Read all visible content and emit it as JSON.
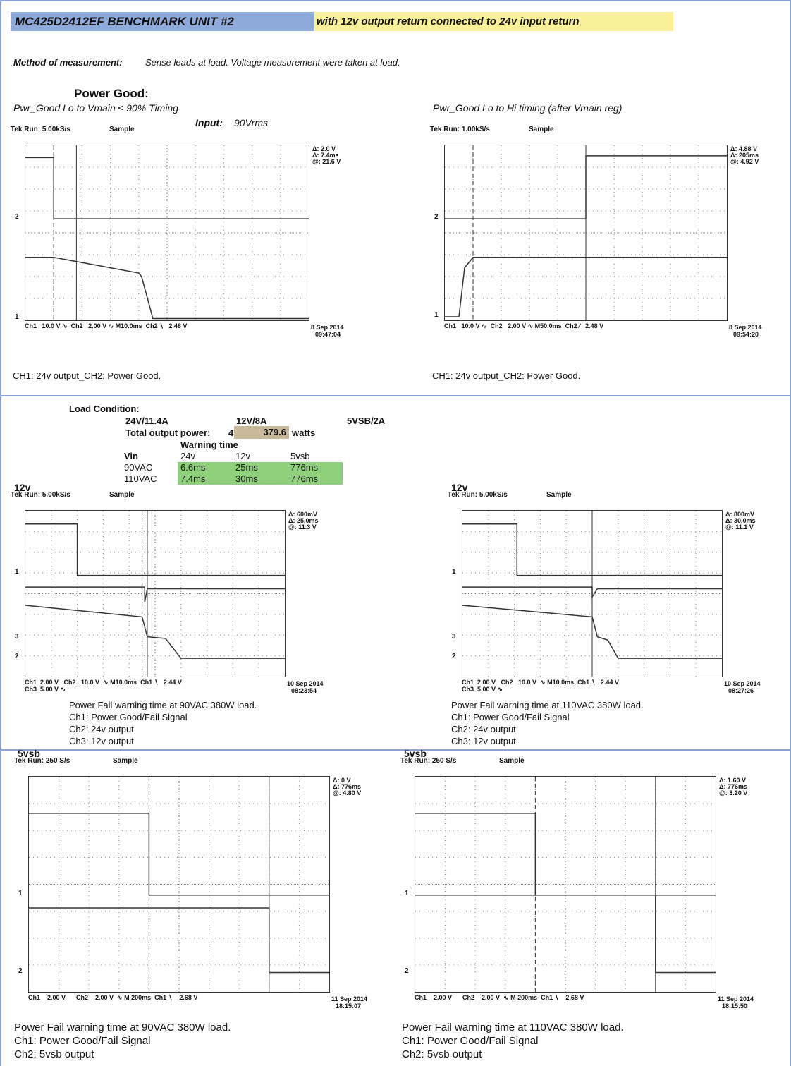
{
  "header": {
    "title": "MC425D2412EF BENCHMARK UNIT #2",
    "note": "with 12v output return connected to 24v input return",
    "method_label": "Method of measurement:",
    "method_text": "Sense leads at load. Voltage measurement were taken at load."
  },
  "power_good": {
    "heading": "Power Good:",
    "input_label": "Input:",
    "input_value": "90Vrms",
    "scopes": [
      {
        "title": "Pwr_Good Lo to Vmain ≤ 90% Timing",
        "run": "Tek Run: 5.00kS/s",
        "mode": "Sample",
        "readout": [
          "Δ: 2.0 V",
          "Δ: 7.4ms",
          "@: 21.6 V"
        ],
        "markers": [
          "2",
          "1"
        ],
        "bottom": "Ch1   10.0 V ∿  Ch2   2.00 V ∿ M10.0ms  Ch2 ∖   2.48 V",
        "date": "8 Sep 2014",
        "time": "09:47:04",
        "captions": [
          "CH1: 24v output_CH2: Power Good."
        ]
      },
      {
        "title": "Pwr_Good Lo to Hi timing (after Vmain reg)",
        "run": "Tek Run: 1.00kS/s",
        "mode": "Sample",
        "readout": [
          "Δ: 4.88 V",
          "Δ: 205ms",
          "@: 4.92 V"
        ],
        "markers": [
          "2",
          "1"
        ],
        "bottom": "Ch1   10.0 V ∿  Ch2   2.00 V ∿ M50.0ms  Ch2 ∕   2.48 V",
        "date": "8 Sep 2014",
        "time": "09:54:20",
        "captions": [
          "CH1: 24v output_CH2: Power Good."
        ]
      }
    ]
  },
  "load": {
    "heading": "Load Condition:",
    "c24": "24V/11.4A",
    "c12": "12V/8A",
    "c5": "5VSB/2A",
    "total_label": "Total output power:",
    "total_prefix": "4",
    "total_value": "379.6",
    "total_unit": "watts",
    "warning_heading": "Warning time",
    "table": {
      "header": [
        "Vin",
        "24v",
        "12v",
        "5vsb"
      ],
      "rows": [
        [
          "90VAC",
          "6.6ms",
          "25ms",
          "776ms"
        ],
        [
          "110VAC",
          "7.4ms",
          "30ms",
          "776ms"
        ]
      ]
    }
  },
  "scopes_12v": [
    {
      "label": "12v",
      "run": "Tek Run: 5.00kS/s",
      "mode": "Sample",
      "readout": [
        "Δ: 600mV",
        "Δ: 25.0ms",
        "@: 11.3 V"
      ],
      "markers": [
        "1",
        "3",
        "2"
      ],
      "bottom": "Ch1  2.00 V   Ch2   10.0 V  ∿ M10.0ms  Ch1 ∖   2.44 V",
      "bottom2": "Ch3  5.00 V ∿",
      "date": "10 Sep 2014",
      "time": "08:23:54",
      "captions": [
        "Power Fail warning time at 90VAC 380W load.",
        "Ch1: Power Good/Fail Signal",
        "Ch2: 24v output",
        "Ch3: 12v output"
      ]
    },
    {
      "label": "12v",
      "run": "Tek Run: 5.00kS/s",
      "mode": "Sample",
      "readout": [
        "Δ: 800mV",
        "Δ: 30.0ms",
        "@: 11.1 V"
      ],
      "markers": [
        "1",
        "3",
        "2"
      ],
      "bottom": "Ch1  2.00 V   Ch2   10.0 V  ∿ M10.0ms  Ch1 ∖   2.44 V",
      "bottom2": "Ch3  5.00 V ∿",
      "date": "10 Sep 2014",
      "time": "08:27:26",
      "captions": [
        "Power Fail warning time at 110VAC 380W load.",
        "Ch1: Power Good/Fail Signal",
        "Ch2: 24v output",
        "Ch3: 12v output"
      ]
    }
  ],
  "scopes_5vsb": [
    {
      "label": "5vsb",
      "run": "Tek Run: 250 S/s",
      "mode": "Sample",
      "readout": [
        "Δ: 0 V",
        "Δ: 776ms",
        "@: 4.80 V"
      ],
      "markers": [
        "1",
        "2"
      ],
      "bottom": "Ch1    2.00 V      Ch2    2.00 V  ∿ M 200ms  Ch1 ∖    2.68 V",
      "date": "11 Sep 2014",
      "time": "18:15:07",
      "captions": [
        "Power Fail warning time at 90VAC 380W load.",
        "Ch1: Power Good/Fail Signal",
        "Ch2: 5vsb output"
      ]
    },
    {
      "label": "5vsb",
      "run": "Tek Run: 250 S/s",
      "mode": "Sample",
      "readout": [
        "Δ: 1.60 V",
        "Δ: 776ms",
        "@: 3.20 V"
      ],
      "markers": [
        "1",
        "2"
      ],
      "bottom": "Ch1    2.00 V      Ch2    2.00 V  ∿ M 200ms  Ch1 ∖    2.68 V",
      "date": "11 Sep 2014",
      "time": "18:15:50",
      "captions": [
        "Power Fail warning time at 110VAC 380W load.",
        "Ch1: Power Good/Fail Signal",
        "Ch2: 5vsb output"
      ]
    }
  ]
}
